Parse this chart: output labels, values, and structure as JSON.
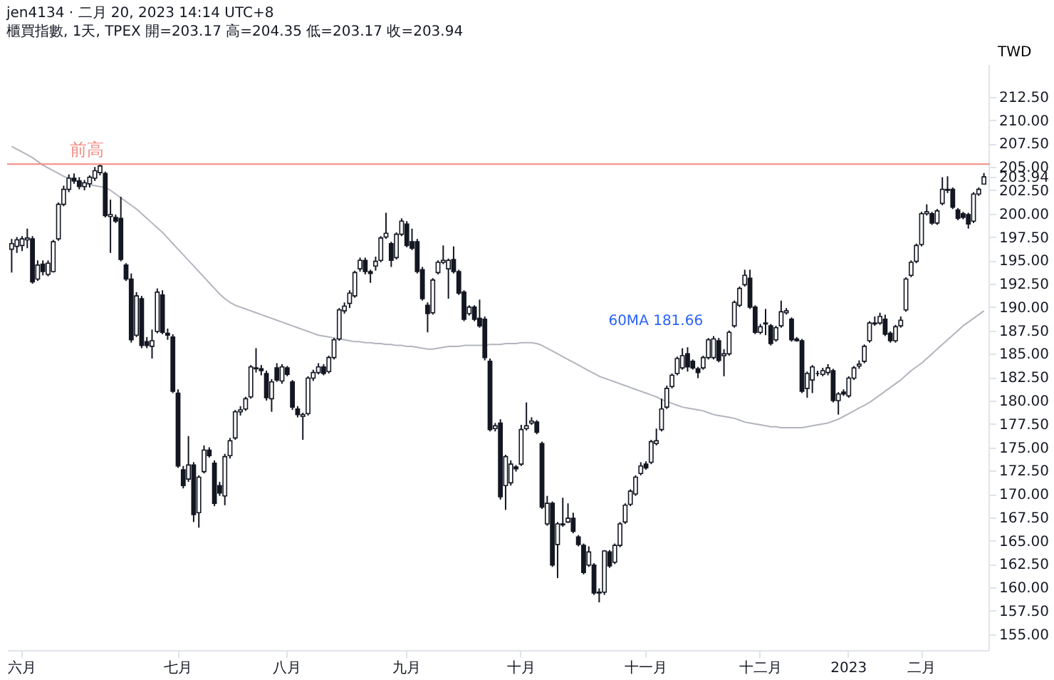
{
  "chart_data": {
    "type": "candlestick",
    "title": "jen4134 · 二月 20, 2023 14:14 UTC+8",
    "subtitle": "櫃買指數, 1天, TPEX 開=203.17 高=204.35 低=203.17 收=203.94",
    "ylabel": "TWD",
    "categories": [
      null,
      null,
      "六月",
      null,
      null,
      null,
      null,
      null,
      null,
      null,
      null,
      null,
      null,
      null,
      null,
      null,
      null,
      null,
      null,
      null,
      null,
      null,
      null,
      null,
      null,
      null,
      null,
      null,
      null,
      null,
      null,
      null,
      "七月",
      null,
      null,
      null,
      null,
      null,
      null,
      null,
      null,
      null,
      null,
      null,
      null,
      null,
      null,
      null,
      null,
      null,
      null,
      null,
      null,
      "八月",
      null,
      null,
      null,
      null,
      null,
      null,
      null,
      null,
      null,
      null,
      null,
      null,
      null,
      null,
      null,
      null,
      null,
      null,
      null,
      null,
      null,
      null,
      "九月",
      null,
      null,
      null,
      null,
      null,
      null,
      null,
      null,
      null,
      null,
      null,
      null,
      null,
      null,
      null,
      null,
      null,
      null,
      null,
      null,
      null,
      "十月",
      null,
      null,
      null,
      null,
      null,
      null,
      null,
      null,
      null,
      null,
      null,
      null,
      null,
      null,
      null,
      null,
      null,
      null,
      null,
      null,
      null,
      null,
      null,
      "十一月",
      null,
      null,
      null,
      null,
      null,
      null,
      null,
      null,
      null,
      null,
      null,
      null,
      null,
      null,
      null,
      null,
      null,
      null,
      null,
      null,
      null,
      "十二月",
      null,
      null,
      null,
      null,
      null,
      null,
      null,
      null,
      null,
      null,
      null,
      null,
      null,
      null,
      null,
      null,
      "2023",
      null,
      null,
      null,
      null,
      null,
      null,
      null,
      null,
      null,
      null,
      null,
      null,
      null,
      "二月",
      null,
      null,
      null,
      null,
      null,
      null,
      null,
      null,
      null,
      null,
      null,
      null
    ],
    "ohlc": [
      [
        196.2,
        197.3,
        193.7,
        196.8
      ],
      [
        196.5,
        197.5,
        195.8,
        197.2
      ],
      [
        196.6,
        197.6,
        196.0,
        197.3
      ],
      [
        197.2,
        198.4,
        196.3,
        197.4
      ],
      [
        197.3,
        197.6,
        192.5,
        192.7
      ],
      [
        193.0,
        195.0,
        192.8,
        194.5
      ],
      [
        194.6,
        195.0,
        193.4,
        193.8
      ],
      [
        193.5,
        195.0,
        193.3,
        194.7
      ],
      [
        193.8,
        197.2,
        193.7,
        197.0
      ],
      [
        197.3,
        201.2,
        197.1,
        201.0
      ],
      [
        201.0,
        203.0,
        200.8,
        202.6
      ],
      [
        202.6,
        204.2,
        202.3,
        203.8
      ],
      [
        203.8,
        204.3,
        203.2,
        203.5
      ],
      [
        203.5,
        203.9,
        202.6,
        202.9
      ],
      [
        202.9,
        203.6,
        202.5,
        203.3
      ],
      [
        203.2,
        204.1,
        202.8,
        203.9
      ],
      [
        203.8,
        205.0,
        203.5,
        204.6
      ],
      [
        204.4,
        205.3,
        204.1,
        205.1
      ],
      [
        204.3,
        204.5,
        199.6,
        199.8
      ],
      [
        199.7,
        201.5,
        195.8,
        199.9
      ],
      [
        199.6,
        199.9,
        199.0,
        199.2
      ],
      [
        199.5,
        201.8,
        194.9,
        195.1
      ],
      [
        194.5,
        194.7,
        192.8,
        193.0
      ],
      [
        193.0,
        193.6,
        186.2,
        186.5
      ],
      [
        187.0,
        191.6,
        186.8,
        191.2
      ],
      [
        190.9,
        191.2,
        185.6,
        185.9
      ],
      [
        186.3,
        186.8,
        185.6,
        185.9
      ],
      [
        185.8,
        187.6,
        184.5,
        186.4
      ],
      [
        187.4,
        192.0,
        187.2,
        191.6
      ],
      [
        191.3,
        191.8,
        187.1,
        187.3
      ],
      [
        187.2,
        187.7,
        186.5,
        187.0
      ],
      [
        186.8,
        187.1,
        180.8,
        181.0
      ],
      [
        180.8,
        181.2,
        172.8,
        173.0
      ],
      [
        172.6,
        173.0,
        170.6,
        170.9
      ],
      [
        171.6,
        176.2,
        171.3,
        173.1
      ],
      [
        173.1,
        173.4,
        167.0,
        167.8
      ],
      [
        168.0,
        172.0,
        166.4,
        171.8
      ],
      [
        172.4,
        175.2,
        172.2,
        174.7
      ],
      [
        174.7,
        175.0,
        173.9,
        174.1
      ],
      [
        173.3,
        173.6,
        168.7,
        169.0
      ],
      [
        170.9,
        171.3,
        169.8,
        170.1
      ],
      [
        169.8,
        174.3,
        168.8,
        174.0
      ],
      [
        174.1,
        176.0,
        173.8,
        175.7
      ],
      [
        176.0,
        179.0,
        175.8,
        178.8
      ],
      [
        178.8,
        179.4,
        178.4,
        179.0
      ],
      [
        179.1,
        180.4,
        178.9,
        180.2
      ],
      [
        180.4,
        183.8,
        180.2,
        183.6
      ],
      [
        183.4,
        185.6,
        183.0,
        183.5
      ],
      [
        183.4,
        183.8,
        182.7,
        183.2
      ],
      [
        182.9,
        183.2,
        180.0,
        180.3
      ],
      [
        180.2,
        182.3,
        178.8,
        182.0
      ],
      [
        183.5,
        184.0,
        182.0,
        182.2
      ],
      [
        182.1,
        183.9,
        181.8,
        183.6
      ],
      [
        183.5,
        183.7,
        182.6,
        182.8
      ],
      [
        182.0,
        182.2,
        179.0,
        179.3
      ],
      [
        179.1,
        179.4,
        178.2,
        178.5
      ],
      [
        178.3,
        178.7,
        175.8,
        178.5
      ],
      [
        178.6,
        182.6,
        178.4,
        182.4
      ],
      [
        182.4,
        183.3,
        182.1,
        183.0
      ],
      [
        183.0,
        184.0,
        182.8,
        183.6
      ],
      [
        183.6,
        183.9,
        182.7,
        182.9
      ],
      [
        183.1,
        184.8,
        182.9,
        184.6
      ],
      [
        184.6,
        186.7,
        184.4,
        186.5
      ],
      [
        186.6,
        189.9,
        186.4,
        189.7
      ],
      [
        189.6,
        190.5,
        189.3,
        190.1
      ],
      [
        190.4,
        191.8,
        189.9,
        191.5
      ],
      [
        191.2,
        193.9,
        191.0,
        193.7
      ],
      [
        194.1,
        195.3,
        193.8,
        195.0
      ],
      [
        195.0,
        195.3,
        193.5,
        193.8
      ],
      [
        193.8,
        194.0,
        192.6,
        193.6
      ],
      [
        194.4,
        195.4,
        193.9,
        194.9
      ],
      [
        195.0,
        197.6,
        194.8,
        197.4
      ],
      [
        197.5,
        200.1,
        197.3,
        197.9
      ],
      [
        196.8,
        197.0,
        194.3,
        195.0
      ],
      [
        195.3,
        198.0,
        195.1,
        197.8
      ],
      [
        197.8,
        199.5,
        197.6,
        199.2
      ],
      [
        198.9,
        199.2,
        196.4,
        196.6
      ],
      [
        197.0,
        198.4,
        196.1,
        196.3
      ],
      [
        197.0,
        197.3,
        193.6,
        193.8
      ],
      [
        194.0,
        194.3,
        190.7,
        190.9
      ],
      [
        190.2,
        190.5,
        187.3,
        189.3
      ],
      [
        189.4,
        193.1,
        189.2,
        192.9
      ],
      [
        193.7,
        195.0,
        193.5,
        194.8
      ],
      [
        194.8,
        196.6,
        194.6,
        195.0
      ],
      [
        194.1,
        195.2,
        190.9,
        195.0
      ],
      [
        195.1,
        196.5,
        193.6,
        193.8
      ],
      [
        193.8,
        194.0,
        191.3,
        191.5
      ],
      [
        191.6,
        191.8,
        188.5,
        188.7
      ],
      [
        189.3,
        190.2,
        189.1,
        190.0
      ],
      [
        190.0,
        190.2,
        188.5,
        188.7
      ],
      [
        188.8,
        190.8,
        187.8,
        188.0
      ],
      [
        188.7,
        189.0,
        184.3,
        184.6
      ],
      [
        184.2,
        184.5,
        176.7,
        176.9
      ],
      [
        177.0,
        177.6,
        176.7,
        177.3
      ],
      [
        177.6,
        178.0,
        169.4,
        169.7
      ],
      [
        170.9,
        174.2,
        168.3,
        174.0
      ],
      [
        171.2,
        173.6,
        170.9,
        173.2
      ],
      [
        172.9,
        173.1,
        172.4,
        172.7
      ],
      [
        173.2,
        177.4,
        173.0,
        176.9
      ],
      [
        177.0,
        179.8,
        176.8,
        177.3
      ],
      [
        177.6,
        178.2,
        177.4,
        177.8
      ],
      [
        177.7,
        177.9,
        176.4,
        176.6
      ],
      [
        175.4,
        175.6,
        168.4,
        168.6
      ],
      [
        166.8,
        169.8,
        166.6,
        169.0
      ],
      [
        169.0,
        169.2,
        162.2,
        162.4
      ],
      [
        164.6,
        167.0,
        161.0,
        166.8
      ],
      [
        166.7,
        169.6,
        166.5,
        166.8
      ],
      [
        167.0,
        169.0,
        166.9,
        167.4
      ],
      [
        167.4,
        168.0,
        165.8,
        166.0
      ],
      [
        165.4,
        165.6,
        164.4,
        164.6
      ],
      [
        164.5,
        164.7,
        161.4,
        161.6
      ],
      [
        162.4,
        164.4,
        162.2,
        163.8
      ],
      [
        162.4,
        162.6,
        159.2,
        159.4
      ],
      [
        159.4,
        159.9,
        158.4,
        159.5
      ],
      [
        159.5,
        164.0,
        159.2,
        163.9
      ],
      [
        163.8,
        164.0,
        162.1,
        162.3
      ],
      [
        162.7,
        164.7,
        162.5,
        164.5
      ],
      [
        164.5,
        167.0,
        164.3,
        166.8
      ],
      [
        167.0,
        169.0,
        166.8,
        168.8
      ],
      [
        168.9,
        170.5,
        168.7,
        170.3
      ],
      [
        170.0,
        172.0,
        169.8,
        171.8
      ],
      [
        172.2,
        173.4,
        172.0,
        173.0
      ],
      [
        173.2,
        173.5,
        172.6,
        172.8
      ],
      [
        173.4,
        175.8,
        173.2,
        175.6
      ],
      [
        175.4,
        177.0,
        175.2,
        175.7
      ],
      [
        176.9,
        180.2,
        176.7,
        179.1
      ],
      [
        179.3,
        181.6,
        179.1,
        181.3
      ],
      [
        181.5,
        182.9,
        181.3,
        182.7
      ],
      [
        182.9,
        184.7,
        182.7,
        184.5
      ],
      [
        183.5,
        185.6,
        183.3,
        184.8
      ],
      [
        185.0,
        185.7,
        183.1,
        183.6
      ],
      [
        184.2,
        184.4,
        183.3,
        183.5
      ],
      [
        183.4,
        183.6,
        182.4,
        183.0
      ],
      [
        183.5,
        184.8,
        183.3,
        184.6
      ],
      [
        184.6,
        186.7,
        184.4,
        186.5
      ],
      [
        184.6,
        186.9,
        184.4,
        186.6
      ],
      [
        186.4,
        186.7,
        184.1,
        184.3
      ],
      [
        184.8,
        185.5,
        182.6,
        185.0
      ],
      [
        185.0,
        187.5,
        184.8,
        187.3
      ],
      [
        188.0,
        190.7,
        187.8,
        190.5
      ],
      [
        190.2,
        192.2,
        190.0,
        192.0
      ],
      [
        192.4,
        194.0,
        192.2,
        193.4
      ],
      [
        193.1,
        194.0,
        189.8,
        190.0
      ],
      [
        190.0,
        190.2,
        187.1,
        187.3
      ],
      [
        187.3,
        188.2,
        187.1,
        187.9
      ],
      [
        188.2,
        189.8,
        187.0,
        188.3
      ],
      [
        188.0,
        188.2,
        185.9,
        186.1
      ],
      [
        186.5,
        188.0,
        186.3,
        187.8
      ],
      [
        188.0,
        190.7,
        187.8,
        189.5
      ],
      [
        189.4,
        189.9,
        189.2,
        189.6
      ],
      [
        188.7,
        188.9,
        186.3,
        186.5
      ],
      [
        186.6,
        186.8,
        186.3,
        186.4
      ],
      [
        186.4,
        186.6,
        180.8,
        181.0
      ],
      [
        181.3,
        183.1,
        180.3,
        182.9
      ],
      [
        182.2,
        183.8,
        180.8,
        183.6
      ],
      [
        182.9,
        183.2,
        182.6,
        182.9
      ],
      [
        182.8,
        183.5,
        182.6,
        183.2
      ],
      [
        183.0,
        183.9,
        182.7,
        183.5
      ],
      [
        183.2,
        183.4,
        179.8,
        180.0
      ],
      [
        180.0,
        180.9,
        178.5,
        180.7
      ],
      [
        180.9,
        181.2,
        180.5,
        180.7
      ],
      [
        180.5,
        182.6,
        180.3,
        182.4
      ],
      [
        182.4,
        183.7,
        182.2,
        183.5
      ],
      [
        183.7,
        184.3,
        183.4,
        183.9
      ],
      [
        184.2,
        186.0,
        184.0,
        185.8
      ],
      [
        186.4,
        188.5,
        186.2,
        188.3
      ],
      [
        188.2,
        189.0,
        188.0,
        188.3
      ],
      [
        188.3,
        189.4,
        188.1,
        189.0
      ],
      [
        188.7,
        189.2,
        186.9,
        187.1
      ],
      [
        187.2,
        187.4,
        186.2,
        186.4
      ],
      [
        186.4,
        188.1,
        186.2,
        187.9
      ],
      [
        188.0,
        189.0,
        187.8,
        188.6
      ],
      [
        189.7,
        193.2,
        189.5,
        193.0
      ],
      [
        193.4,
        195.0,
        193.2,
        194.8
      ],
      [
        194.9,
        196.8,
        194.7,
        196.6
      ],
      [
        196.7,
        200.2,
        196.5,
        200.0
      ],
      [
        200.0,
        201.0,
        199.8,
        200.2
      ],
      [
        200.0,
        200.2,
        198.8,
        199.0
      ],
      [
        199.0,
        200.5,
        198.8,
        200.3
      ],
      [
        201.1,
        203.9,
        200.9,
        202.6
      ],
      [
        202.5,
        204.0,
        202.2,
        202.6
      ],
      [
        202.6,
        202.8,
        200.5,
        200.7
      ],
      [
        200.4,
        200.6,
        199.3,
        199.5
      ],
      [
        200.0,
        200.2,
        199.4,
        199.6
      ],
      [
        199.9,
        200.1,
        198.4,
        198.9
      ],
      [
        199.2,
        202.3,
        199.0,
        202.1
      ],
      [
        202.1,
        202.8,
        201.9,
        202.6
      ],
      [
        203.17,
        204.35,
        203.17,
        203.94
      ]
    ],
    "series": [
      {
        "type": "line",
        "color": "#b2b5be",
        "values": [
          207.2,
          206.9,
          206.6,
          206.3,
          206.0,
          205.6,
          205.2,
          204.9,
          204.6,
          204.3,
          204.0,
          203.8,
          203.6,
          203.4,
          203.2,
          203.1,
          203.0,
          202.9,
          202.8,
          202.5,
          202.1,
          201.7,
          201.3,
          200.9,
          200.5,
          200.0,
          199.5,
          199.0,
          198.5,
          198.0,
          197.4,
          196.8,
          196.2,
          195.6,
          195.0,
          194.4,
          193.8,
          193.2,
          192.6,
          192.0,
          191.4,
          190.9,
          190.5,
          190.2,
          190.0,
          189.8,
          189.6,
          189.4,
          189.2,
          189.0,
          188.8,
          188.6,
          188.4,
          188.2,
          188.0,
          187.8,
          187.6,
          187.4,
          187.2,
          187.0,
          186.9,
          186.8,
          186.7,
          186.6,
          186.5,
          186.4,
          186.3,
          186.3,
          186.2,
          186.2,
          186.1,
          186.1,
          186.0,
          186.0,
          185.9,
          185.9,
          185.8,
          185.8,
          185.7,
          185.6,
          185.5,
          185.5,
          185.6,
          185.7,
          185.8,
          185.8,
          185.8,
          185.9,
          185.9,
          185.9,
          185.9,
          185.9,
          186.0,
          186.0,
          186.0,
          186.1,
          186.1,
          186.1,
          186.2,
          186.2,
          186.2,
          186.1,
          185.9,
          185.6,
          185.3,
          185.0,
          184.7,
          184.4,
          184.1,
          183.8,
          183.5,
          183.2,
          182.9,
          182.6,
          182.4,
          182.2,
          182.0,
          181.8,
          181.6,
          181.4,
          181.2,
          181.0,
          180.8,
          180.6,
          180.4,
          180.1,
          179.9,
          179.7,
          179.5,
          179.3,
          179.2,
          179.1,
          179.0,
          178.9,
          178.7,
          178.5,
          178.4,
          178.3,
          178.2,
          178.1,
          177.9,
          177.7,
          177.6,
          177.5,
          177.4,
          177.3,
          177.2,
          177.2,
          177.1,
          177.1,
          177.1,
          177.1,
          177.1,
          177.2,
          177.3,
          177.4,
          177.5,
          177.6,
          177.8,
          178.0,
          178.3,
          178.6,
          178.9,
          179.2,
          179.5,
          179.8,
          180.2,
          180.6,
          181.0,
          181.4,
          181.8,
          182.2,
          182.7,
          183.2,
          183.6,
          184.0,
          184.5,
          185.0,
          185.5,
          186.0,
          186.5,
          187.0,
          187.5,
          188.0,
          188.4,
          188.8,
          189.2,
          189.6
        ]
      }
    ],
    "ylim": [
      153.3,
      216.0
    ],
    "yticks": [
      {
        "value": 155,
        "label": "155.00"
      },
      {
        "value": 157.5,
        "label": "157.50"
      },
      {
        "value": 160,
        "label": "160.00"
      },
      {
        "value": 162.5,
        "label": "162.50"
      },
      {
        "value": 165,
        "label": "165.00"
      },
      {
        "value": 167.5,
        "label": "167.50"
      },
      {
        "value": 170,
        "label": "170.00"
      },
      {
        "value": 172.5,
        "label": "172.50"
      },
      {
        "value": 175,
        "label": "175.00"
      },
      {
        "value": 177.5,
        "label": "177.50"
      },
      {
        "value": 180,
        "label": "180.00"
      },
      {
        "value": 182.5,
        "label": "182.50"
      },
      {
        "value": 185,
        "label": "185.00"
      },
      {
        "value": 187.5,
        "label": "187.50"
      },
      {
        "value": 190,
        "label": "190.00"
      },
      {
        "value": 192.5,
        "label": "192.50"
      },
      {
        "value": 195,
        "label": "195.00"
      },
      {
        "value": 197.5,
        "label": "197.50"
      },
      {
        "value": 200,
        "label": "200.00"
      },
      {
        "value": 202.5,
        "label": "202.50"
      },
      {
        "value": 203.94,
        "label": "203.94"
      },
      {
        "value": 205,
        "label": "205.00"
      },
      {
        "value": 207.5,
        "label": "207.50"
      },
      {
        "value": 210,
        "label": "210.00"
      },
      {
        "value": 212.5,
        "label": "212.50"
      }
    ],
    "ref_lines": [
      {
        "axis": "y",
        "value": 205.3,
        "label": "前高",
        "color": "#f28b82"
      }
    ],
    "annotations": [
      "60MA 181.66"
    ],
    "grid": false
  }
}
